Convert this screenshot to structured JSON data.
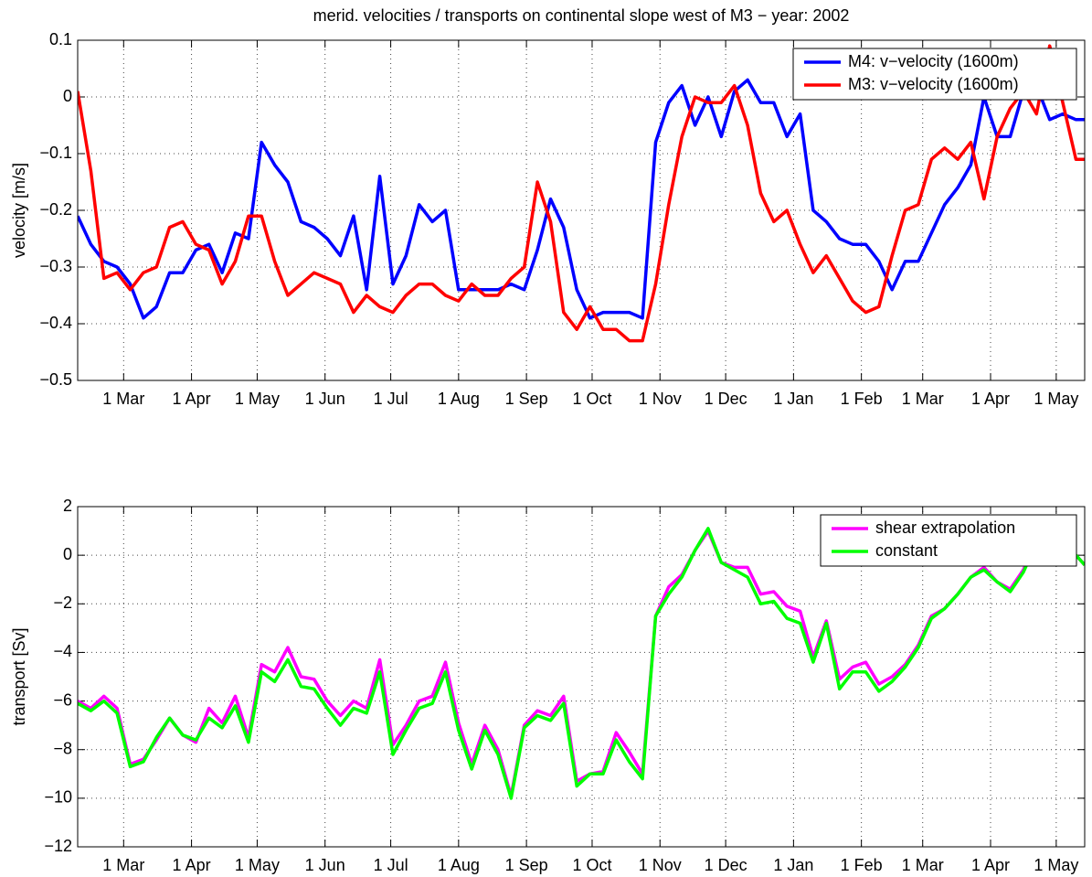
{
  "chart_data": [
    {
      "type": "line",
      "title": "merid. velocities / transports on continental slope west of M3 − year: 2002",
      "y_label": "velocity [m/s]",
      "x": [
        38,
        44,
        50,
        56,
        62,
        68,
        74,
        80,
        86,
        92,
        98,
        104,
        110,
        116,
        122,
        128,
        134,
        140,
        146,
        152,
        158,
        164,
        170,
        176,
        182,
        188,
        194,
        200,
        206,
        212,
        218,
        224,
        230,
        236,
        242,
        248,
        254,
        260,
        266,
        272,
        278,
        284,
        290,
        296,
        302,
        308,
        314,
        320,
        326,
        332,
        338,
        344,
        350,
        356,
        362,
        368,
        374,
        380,
        386,
        392,
        398,
        404,
        410,
        416,
        422,
        428,
        434,
        440,
        446,
        452,
        458,
        464,
        470,
        476,
        482,
        488,
        494,
        498
      ],
      "xlim": [
        38,
        498
      ],
      "xticks": [
        {
          "value": 59,
          "label": "1 Mar"
        },
        {
          "value": 90,
          "label": "1 Apr"
        },
        {
          "value": 120,
          "label": "1 May"
        },
        {
          "value": 151,
          "label": "1 Jun"
        },
        {
          "value": 181,
          "label": "1 Jul"
        },
        {
          "value": 212,
          "label": "1 Aug"
        },
        {
          "value": 243,
          "label": "1 Sep"
        },
        {
          "value": 273,
          "label": "1 Oct"
        },
        {
          "value": 304,
          "label": "1 Nov"
        },
        {
          "value": 334,
          "label": "1 Dec"
        },
        {
          "value": 365,
          "label": "1 Jan"
        },
        {
          "value": 396,
          "label": "1 Feb"
        },
        {
          "value": 424,
          "label": "1 Mar"
        },
        {
          "value": 455,
          "label": "1 Apr"
        },
        {
          "value": 485,
          "label": "1 May"
        }
      ],
      "ylim": [
        -0.5,
        0.1
      ],
      "yticks": [
        {
          "value": -0.5,
          "label": "−0.5"
        },
        {
          "value": -0.4,
          "label": "−0.4"
        },
        {
          "value": -0.3,
          "label": "−0.3"
        },
        {
          "value": -0.2,
          "label": "−0.2"
        },
        {
          "value": -0.1,
          "label": "−0.1"
        },
        0,
        0.1
      ],
      "grid": true,
      "legend": "upper right",
      "series": [
        {
          "name": "M4: v−velocity (1600m)",
          "color": "#0000ff",
          "values": [
            -0.21,
            -0.26,
            -0.29,
            -0.3,
            -0.33,
            -0.39,
            -0.37,
            -0.31,
            -0.31,
            -0.27,
            -0.26,
            -0.31,
            -0.24,
            -0.25,
            -0.08,
            -0.12,
            -0.15,
            -0.22,
            -0.23,
            -0.25,
            -0.28,
            -0.21,
            -0.34,
            -0.14,
            -0.33,
            -0.28,
            -0.19,
            -0.22,
            -0.2,
            -0.34,
            -0.34,
            -0.34,
            -0.34,
            -0.33,
            -0.34,
            -0.27,
            -0.18,
            -0.23,
            -0.34,
            -0.39,
            -0.38,
            -0.38,
            -0.38,
            -0.39,
            -0.08,
            -0.01,
            0.02,
            -0.05,
            0.0,
            -0.07,
            0.01,
            0.03,
            -0.01,
            -0.01,
            -0.07,
            -0.03,
            -0.2,
            -0.22,
            -0.25,
            -0.26,
            -0.26,
            -0.29,
            -0.34,
            -0.29,
            -0.29,
            -0.24,
            -0.19,
            -0.16,
            -0.12,
            0.0,
            -0.07,
            -0.07,
            0.01,
            0.02,
            -0.04,
            -0.03,
            -0.04,
            -0.04
          ]
        },
        {
          "name": "M3: v−velocity (1600m)",
          "color": "#ff0000",
          "values": [
            0.01,
            -0.13,
            -0.32,
            -0.31,
            -0.34,
            -0.31,
            -0.3,
            -0.23,
            -0.22,
            -0.26,
            -0.27,
            -0.33,
            -0.29,
            -0.21,
            -0.21,
            -0.29,
            -0.35,
            -0.33,
            -0.31,
            -0.32,
            -0.33,
            -0.38,
            -0.35,
            -0.37,
            -0.38,
            -0.35,
            -0.33,
            -0.33,
            -0.35,
            -0.36,
            -0.33,
            -0.35,
            -0.35,
            -0.32,
            -0.3,
            -0.15,
            -0.22,
            -0.38,
            -0.41,
            -0.37,
            -0.41,
            -0.41,
            -0.43,
            -0.43,
            -0.33,
            -0.19,
            -0.07,
            0.0,
            -0.01,
            -0.01,
            0.02,
            -0.05,
            -0.17,
            -0.22,
            -0.2,
            -0.26,
            -0.31,
            -0.28,
            -0.32,
            -0.36,
            -0.38,
            -0.37,
            -0.28,
            -0.2,
            -0.19,
            -0.11,
            -0.09,
            -0.11,
            -0.08,
            -0.18,
            -0.07,
            -0.02,
            0.01,
            -0.03,
            0.09,
            -0.01,
            -0.11,
            -0.11
          ]
        }
      ]
    },
    {
      "type": "line",
      "y_label": "transport [Sv]",
      "x": [
        38,
        44,
        50,
        56,
        62,
        68,
        74,
        80,
        86,
        92,
        98,
        104,
        110,
        116,
        122,
        128,
        134,
        140,
        146,
        152,
        158,
        164,
        170,
        176,
        182,
        188,
        194,
        200,
        206,
        212,
        218,
        224,
        230,
        236,
        242,
        248,
        254,
        260,
        266,
        272,
        278,
        284,
        290,
        296,
        302,
        308,
        314,
        320,
        326,
        332,
        338,
        344,
        350,
        356,
        362,
        368,
        374,
        380,
        386,
        392,
        398,
        404,
        410,
        416,
        422,
        428,
        434,
        440,
        446,
        452,
        458,
        464,
        470,
        476,
        482,
        488,
        494,
        498
      ],
      "xlim": [
        38,
        498
      ],
      "xticks": [
        {
          "value": 59,
          "label": "1 Mar"
        },
        {
          "value": 90,
          "label": "1 Apr"
        },
        {
          "value": 120,
          "label": "1 May"
        },
        {
          "value": 151,
          "label": "1 Jun"
        },
        {
          "value": 181,
          "label": "1 Jul"
        },
        {
          "value": 212,
          "label": "1 Aug"
        },
        {
          "value": 243,
          "label": "1 Sep"
        },
        {
          "value": 273,
          "label": "1 Oct"
        },
        {
          "value": 304,
          "label": "1 Nov"
        },
        {
          "value": 334,
          "label": "1 Dec"
        },
        {
          "value": 365,
          "label": "1 Jan"
        },
        {
          "value": 396,
          "label": "1 Feb"
        },
        {
          "value": 424,
          "label": "1 Mar"
        },
        {
          "value": 455,
          "label": "1 Apr"
        },
        {
          "value": 485,
          "label": "1 May"
        }
      ],
      "ylim": [
        -12,
        2
      ],
      "yticks": [
        {
          "value": -12,
          "label": "−12"
        },
        {
          "value": -10,
          "label": "−10"
        },
        {
          "value": -8,
          "label": "−8"
        },
        {
          "value": -6,
          "label": "−6"
        },
        {
          "value": -4,
          "label": "−4"
        },
        {
          "value": -2,
          "label": "−2"
        },
        0,
        2
      ],
      "grid": true,
      "legend": "upper right",
      "series": [
        {
          "name": "shear extrapolation",
          "color": "#ff00ff",
          "values": [
            -6.0,
            -6.3,
            -5.8,
            -6.3,
            -8.6,
            -8.4,
            -7.6,
            -6.7,
            -7.4,
            -7.7,
            -6.3,
            -6.9,
            -5.8,
            -7.5,
            -4.5,
            -4.8,
            -3.8,
            -5.0,
            -5.1,
            -6.0,
            -6.6,
            -6.0,
            -6.3,
            -4.3,
            -7.8,
            -7.0,
            -6.0,
            -5.8,
            -4.4,
            -6.9,
            -8.6,
            -7.0,
            -8.0,
            -9.9,
            -7.0,
            -6.4,
            -6.6,
            -5.8,
            -9.3,
            -9.0,
            -8.9,
            -7.3,
            -8.1,
            -9.0,
            -2.5,
            -1.3,
            -0.8,
            0.2,
            1.0,
            -0.3,
            -0.5,
            -0.5,
            -1.6,
            -1.5,
            -2.1,
            -2.3,
            -4.2,
            -2.7,
            -5.1,
            -4.6,
            -4.4,
            -5.3,
            -5.0,
            -4.5,
            -3.7,
            -2.5,
            -2.2,
            -1.6,
            -0.9,
            -0.5,
            -1.1,
            -1.4,
            -0.6,
            0.6,
            1.5,
            0.2,
            0.0,
            -0.4
          ]
        },
        {
          "name": "constant",
          "color": "#00ff00",
          "values": [
            -6.1,
            -6.4,
            -6.0,
            -6.5,
            -8.7,
            -8.5,
            -7.5,
            -6.7,
            -7.4,
            -7.6,
            -6.7,
            -7.1,
            -6.2,
            -7.7,
            -4.8,
            -5.2,
            -4.3,
            -5.4,
            -5.5,
            -6.3,
            -7.0,
            -6.3,
            -6.5,
            -4.8,
            -8.2,
            -7.2,
            -6.3,
            -6.1,
            -4.8,
            -7.2,
            -8.8,
            -7.2,
            -8.2,
            -10.0,
            -7.1,
            -6.6,
            -6.8,
            -6.1,
            -9.5,
            -9.0,
            -9.0,
            -7.6,
            -8.5,
            -9.2,
            -2.5,
            -1.6,
            -0.9,
            0.2,
            1.1,
            -0.3,
            -0.6,
            -0.9,
            -2.0,
            -1.9,
            -2.6,
            -2.8,
            -4.4,
            -2.8,
            -5.5,
            -4.8,
            -4.8,
            -5.6,
            -5.2,
            -4.6,
            -3.8,
            -2.6,
            -2.2,
            -1.6,
            -0.9,
            -0.6,
            -1.1,
            -1.5,
            -0.7,
            0.5,
            1.6,
            0.2,
            0.0,
            -0.4
          ]
        }
      ]
    }
  ]
}
